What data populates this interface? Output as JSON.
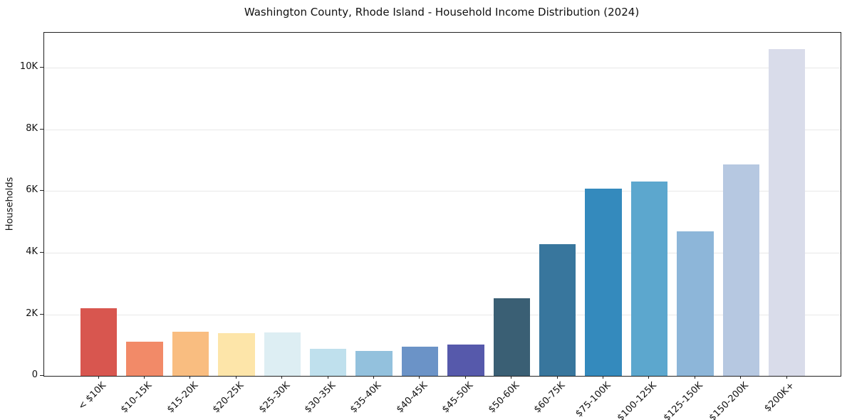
{
  "chart_data": {
    "type": "bar",
    "title": "Washington County, Rhode Island - Household Income Distribution (2024)",
    "xlabel": "",
    "ylabel": "Households",
    "categories": [
      "< $10K",
      "$10-15K",
      "$15-20K",
      "$20-25K",
      "$25-30K",
      "$30-35K",
      "$35-40K",
      "$40-45K",
      "$45-50K",
      "$50-60K",
      "$60-75K",
      "$75-100K",
      "$100-125K",
      "$125-150K",
      "$150-200K",
      "$200K+"
    ],
    "values": [
      2190,
      1110,
      1440,
      1390,
      1410,
      880,
      800,
      950,
      1010,
      2510,
      4280,
      6080,
      6300,
      4700,
      6870,
      10610
    ],
    "bar_colors": [
      "#d8564f",
      "#f28a68",
      "#f9bd80",
      "#fde5a9",
      "#ddeef3",
      "#bfe0ed",
      "#93c1dd",
      "#6b93c7",
      "#5659ab",
      "#3a5f74",
      "#38769d",
      "#348abd",
      "#5ca7ce",
      "#8db6d9",
      "#b6c8e1",
      "#d9dcea"
    ],
    "ylim": [
      0,
      11140
    ],
    "yticks": [
      {
        "value": 0,
        "label": "0"
      },
      {
        "value": 2000,
        "label": "2K"
      },
      {
        "value": 4000,
        "label": "4K"
      },
      {
        "value": 6000,
        "label": "6K"
      },
      {
        "value": 8000,
        "label": "8K"
      },
      {
        "value": 10000,
        "label": "10K"
      }
    ],
    "grid": "horizontal",
    "legend": "none",
    "background_color": "#ffffff",
    "grid_color": "#e8e8e8",
    "spine_color": "#222222",
    "text_color": "#111111"
  }
}
